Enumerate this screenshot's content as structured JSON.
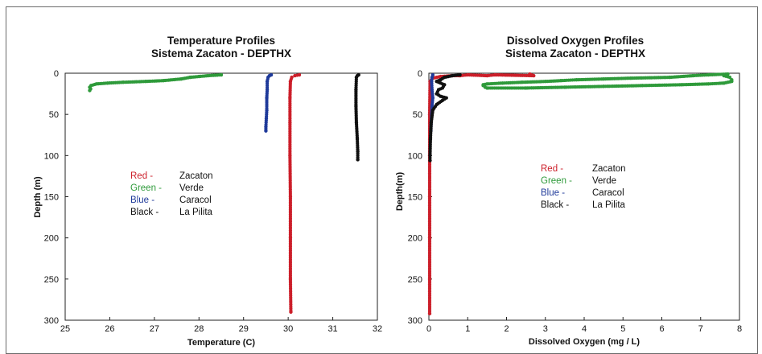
{
  "chart_data": [
    {
      "type": "scatter",
      "title": "Temperature Profiles",
      "subtitle": "Sistema Zacaton - DEPTHX",
      "xlabel": "Temperature (C)",
      "ylabel": "Depth (m)",
      "xlim": [
        25,
        32
      ],
      "ylim": [
        0,
        300
      ],
      "y_inverted": true,
      "xticks": [
        "25",
        "26",
        "27",
        "28",
        "29",
        "30",
        "31",
        "32"
      ],
      "yticks": [
        "0",
        "50",
        "100",
        "150",
        "200",
        "250",
        "300"
      ],
      "legend": [
        {
          "key": "Red -",
          "name": "Zacaton",
          "color": "#cc1f2a"
        },
        {
          "key": "Green -",
          "name": "Verde",
          "color": "#2e9a3a"
        },
        {
          "key": "Blue -",
          "name": "Caracol",
          "color": "#1f3a9a"
        },
        {
          "key": "Black -",
          "name": "La Pilita",
          "color": "#111111"
        }
      ],
      "legend_placement": "left-middle",
      "grid": false,
      "series": [
        {
          "name": "Zacaton",
          "color": "#cc1f2a",
          "points": [
            [
              30.25,
              2
            ],
            [
              30.15,
              3
            ],
            [
              30.08,
              5
            ],
            [
              30.05,
              10
            ],
            [
              30.04,
              30
            ],
            [
              30.04,
              60
            ],
            [
              30.04,
              100
            ],
            [
              30.05,
              150
            ],
            [
              30.05,
              200
            ],
            [
              30.05,
              250
            ],
            [
              30.06,
              290
            ]
          ]
        },
        {
          "name": "Verde",
          "color": "#2e9a3a",
          "points": [
            [
              28.5,
              2
            ],
            [
              28.2,
              3
            ],
            [
              28.0,
              4
            ],
            [
              27.8,
              5
            ],
            [
              27.6,
              7
            ],
            [
              27.2,
              9
            ],
            [
              26.8,
              10
            ],
            [
              26.3,
              11
            ],
            [
              25.95,
              12
            ],
            [
              25.7,
              13
            ],
            [
              25.58,
              15
            ],
            [
              25.55,
              17
            ],
            [
              25.57,
              19
            ],
            [
              25.55,
              21
            ]
          ]
        },
        {
          "name": "Caracol",
          "color": "#1f3a9a",
          "points": [
            [
              29.62,
              2
            ],
            [
              29.58,
              3
            ],
            [
              29.55,
              5
            ],
            [
              29.53,
              10
            ],
            [
              29.53,
              20
            ],
            [
              29.52,
              30
            ],
            [
              29.52,
              45
            ],
            [
              29.51,
              55
            ],
            [
              29.5,
              65
            ],
            [
              29.5,
              70
            ]
          ]
        },
        {
          "name": "La Pilita",
          "color": "#111111",
          "points": [
            [
              31.58,
              2
            ],
            [
              31.55,
              3
            ],
            [
              31.53,
              5
            ],
            [
              31.52,
              20
            ],
            [
              31.52,
              40
            ],
            [
              31.53,
              60
            ],
            [
              31.55,
              80
            ],
            [
              31.56,
              95
            ],
            [
              31.56,
              105
            ]
          ]
        }
      ]
    },
    {
      "type": "scatter",
      "title": "Dissolved Oxygen Profiles",
      "subtitle": "Sistema Zacaton - DEPTHX",
      "xlabel": "Dissolved Oxygen (mg / L)",
      "ylabel": "Depth(m)",
      "xlim": [
        0,
        8
      ],
      "ylim": [
        0,
        300
      ],
      "y_inverted": true,
      "xticks": [
        "0",
        "1",
        "2",
        "3",
        "4",
        "5",
        "6",
        "7",
        "8"
      ],
      "yticks": [
        "0",
        "50",
        "100",
        "150",
        "200",
        "250",
        "300"
      ],
      "legend": [
        {
          "key": "Red -",
          "name": "Zacaton",
          "color": "#cc1f2a"
        },
        {
          "key": "Green -",
          "name": "Verde",
          "color": "#2e9a3a"
        },
        {
          "key": "Blue -",
          "name": "Caracol",
          "color": "#1f3a9a"
        },
        {
          "key": "Black -",
          "name": "La Pilita",
          "color": "#111111"
        }
      ],
      "legend_placement": "center",
      "grid": false,
      "series": [
        {
          "name": "Zacaton",
          "color": "#cc1f2a",
          "points": [
            [
              2.6,
              1
            ],
            [
              2.7,
              3
            ],
            [
              1.7,
              2
            ],
            [
              1.5,
              3
            ],
            [
              1.0,
              2
            ],
            [
              0.8,
              3
            ],
            [
              0.6,
              3
            ],
            [
              0.3,
              4
            ],
            [
              0.1,
              6
            ],
            [
              0.03,
              10
            ],
            [
              0.02,
              50
            ],
            [
              0.02,
              100
            ],
            [
              0.02,
              150
            ],
            [
              0.02,
              200
            ],
            [
              0.02,
              250
            ],
            [
              0.02,
              292
            ]
          ]
        },
        {
          "name": "Verde",
          "color": "#2e9a3a",
          "points": [
            [
              7.7,
              1
            ],
            [
              7.2,
              2
            ],
            [
              6.8,
              3
            ],
            [
              6.2,
              5
            ],
            [
              5.2,
              6
            ],
            [
              4.5,
              7
            ],
            [
              3.8,
              8
            ],
            [
              3.4,
              9
            ],
            [
              3.0,
              10
            ],
            [
              2.4,
              11
            ],
            [
              1.9,
              12
            ],
            [
              1.5,
              13
            ],
            [
              1.4,
              14
            ],
            [
              1.4,
              15
            ],
            [
              1.45,
              17
            ],
            [
              1.5,
              18
            ],
            [
              2.5,
              18
            ],
            [
              3.5,
              17
            ],
            [
              4.5,
              16
            ],
            [
              5.5,
              15
            ],
            [
              6.5,
              14
            ],
            [
              7.2,
              13
            ],
            [
              7.6,
              12
            ],
            [
              7.8,
              10
            ],
            [
              7.8,
              8
            ],
            [
              7.75,
              5
            ],
            [
              7.6,
              3
            ]
          ]
        },
        {
          "name": "Caracol",
          "color": "#1f3a9a",
          "points": [
            [
              0.1,
              2
            ],
            [
              0.08,
              5
            ],
            [
              0.07,
              10
            ],
            [
              0.08,
              20
            ],
            [
              0.1,
              30
            ],
            [
              0.08,
              40
            ],
            [
              0.07,
              50
            ],
            [
              0.06,
              60
            ],
            [
              0.05,
              70
            ]
          ]
        },
        {
          "name": "La Pilita",
          "color": "#111111",
          "points": [
            [
              0.8,
              2
            ],
            [
              0.6,
              3
            ],
            [
              0.4,
              5
            ],
            [
              0.3,
              8
            ],
            [
              0.2,
              10
            ],
            [
              0.4,
              14
            ],
            [
              0.35,
              18
            ],
            [
              0.25,
              20
            ],
            [
              0.2,
              25
            ],
            [
              0.3,
              28
            ],
            [
              0.45,
              30
            ],
            [
              0.35,
              33
            ],
            [
              0.2,
              38
            ],
            [
              0.1,
              45
            ],
            [
              0.06,
              60
            ],
            [
              0.04,
              80
            ],
            [
              0.03,
              100
            ],
            [
              0.03,
              106
            ]
          ]
        }
      ]
    }
  ]
}
